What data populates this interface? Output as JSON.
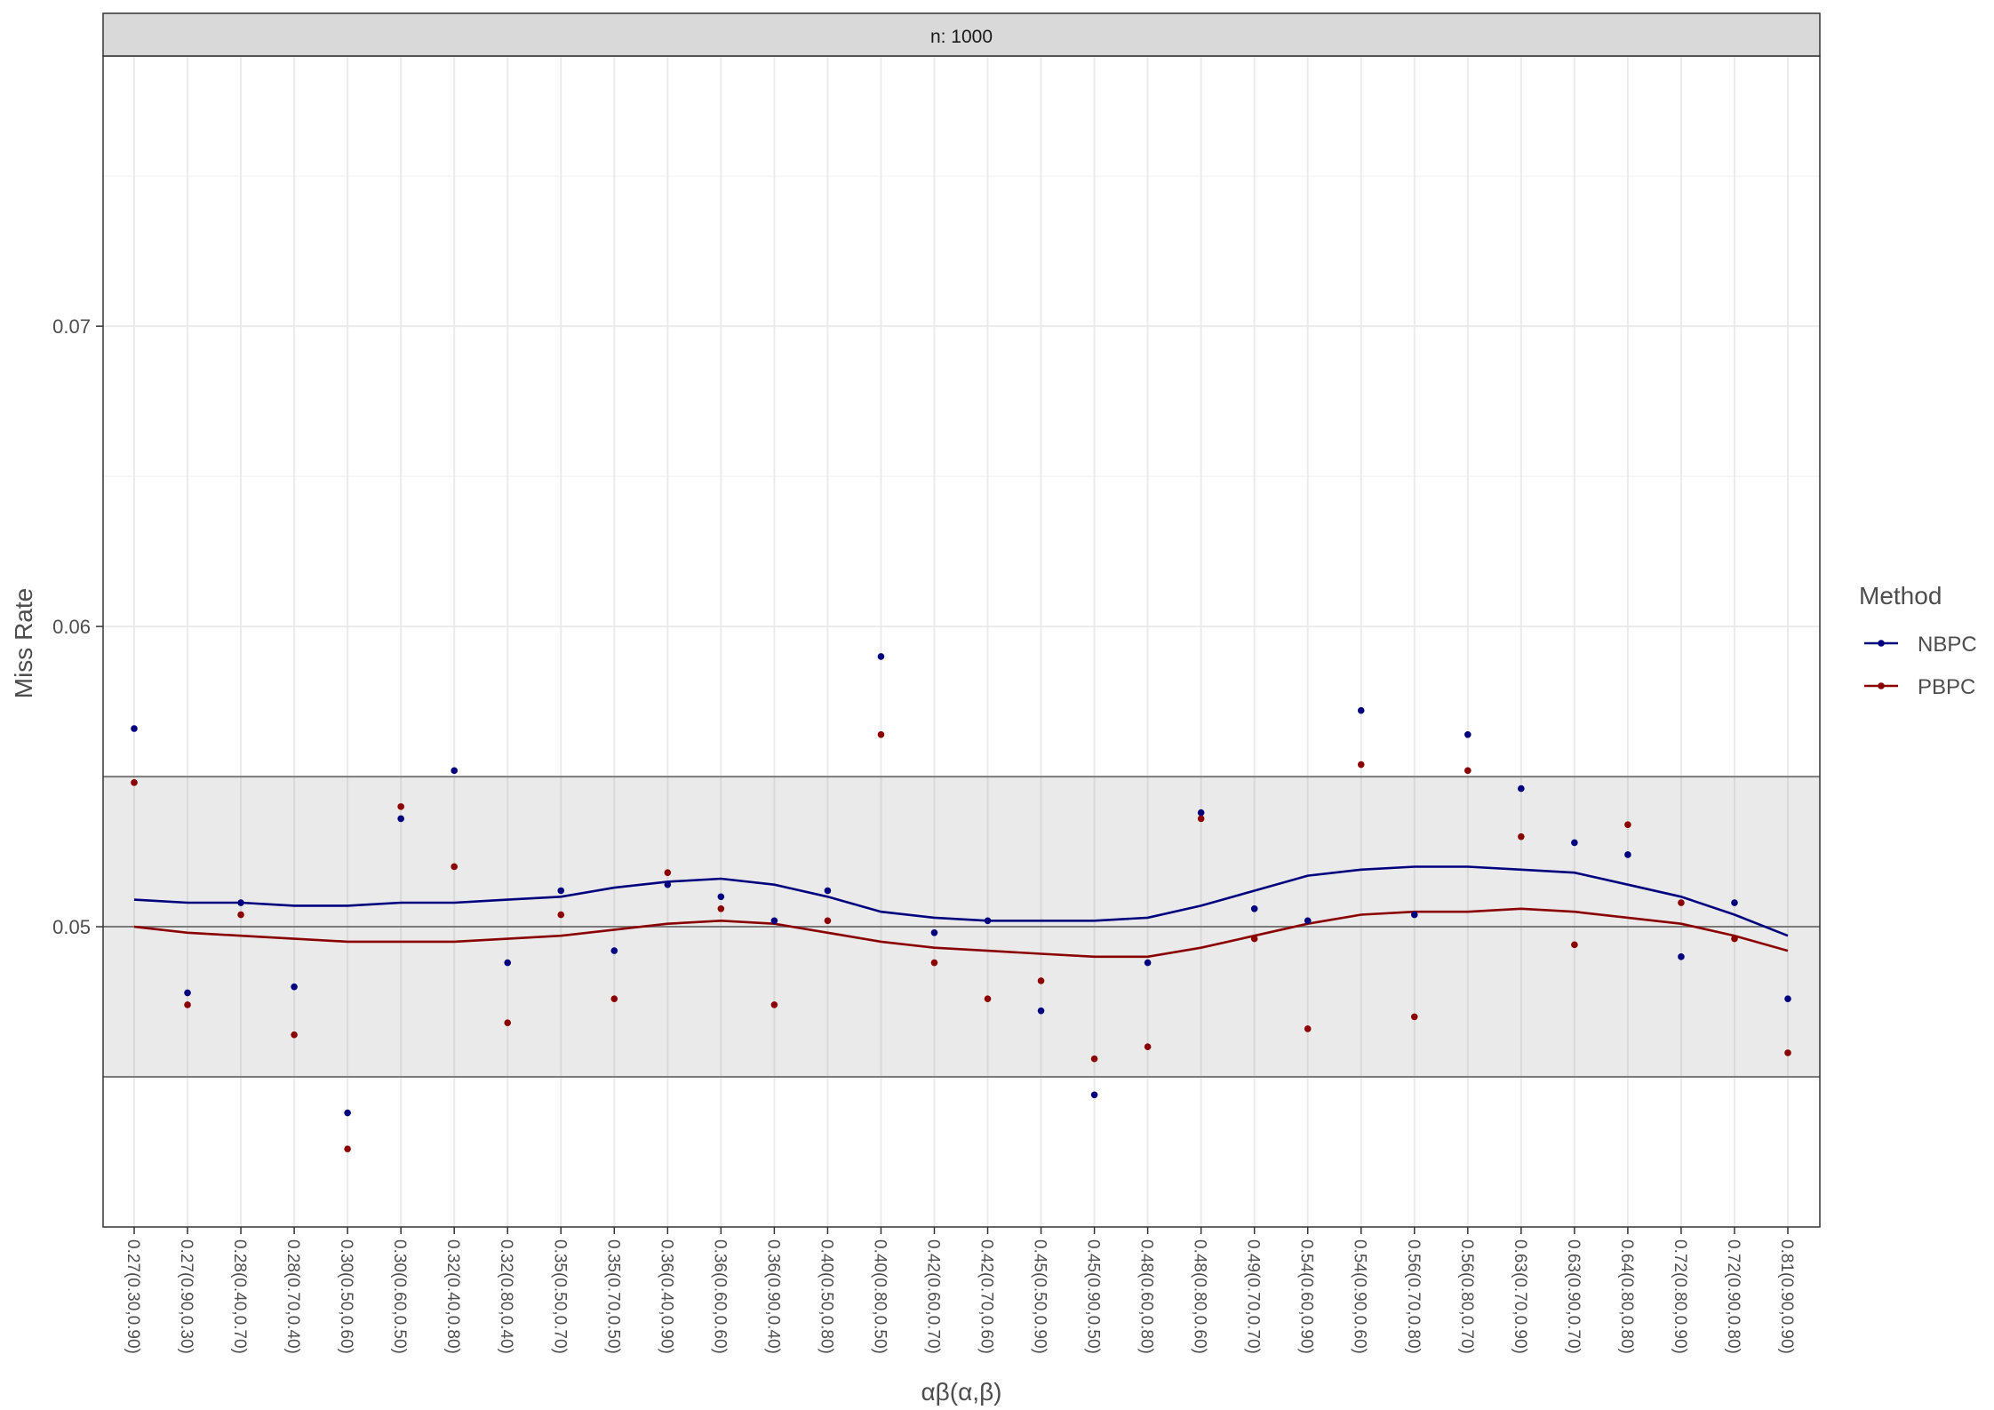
{
  "chart_data": {
    "type": "scatter",
    "facet_label": "n: 1000",
    "xlabel": "αβ(α,β)",
    "ylabel": "Miss Rate",
    "ylim": [
      0.04,
      0.079
    ],
    "y_ticks": [
      0.05,
      0.06,
      0.07
    ],
    "y_tick_labels": [
      "0.05",
      "0.06",
      "0.07"
    ],
    "grid": true,
    "reference_lines": [
      0.045,
      0.05,
      0.055
    ],
    "band": [
      0.045,
      0.055
    ],
    "legend_title": "Method",
    "legend_position": "right",
    "categories": [
      "0.27(0.30,0.90)",
      "0.27(0.90,0.30)",
      "0.28(0.40,0.70)",
      "0.28(0.70,0.40)",
      "0.30(0.50,0.60)",
      "0.30(0.60,0.50)",
      "0.32(0.40,0.80)",
      "0.32(0.80,0.40)",
      "0.35(0.50,0.70)",
      "0.35(0.70,0.50)",
      "0.36(0.40,0.90)",
      "0.36(0.60,0.60)",
      "0.36(0.90,0.40)",
      "0.40(0.50,0.80)",
      "0.40(0.80,0.50)",
      "0.42(0.60,0.70)",
      "0.42(0.70,0.60)",
      "0.45(0.50,0.90)",
      "0.45(0.90,0.50)",
      "0.48(0.60,0.80)",
      "0.48(0.80,0.60)",
      "0.49(0.70,0.70)",
      "0.54(0.60,0.90)",
      "0.54(0.90,0.60)",
      "0.56(0.70,0.80)",
      "0.56(0.80,0.70)",
      "0.63(0.70,0.90)",
      "0.63(0.90,0.70)",
      "0.64(0.80,0.80)",
      "0.72(0.80,0.90)",
      "0.72(0.90,0.80)",
      "0.81(0.90,0.90)"
    ],
    "series": [
      {
        "name": "NBPC",
        "color": "#00007f",
        "values": [
          0.0566,
          0.0478,
          0.0508,
          0.048,
          0.0438,
          0.0536,
          0.0552,
          0.0488,
          0.0512,
          0.0492,
          0.0514,
          0.051,
          0.0502,
          0.0512,
          0.059,
          0.0498,
          0.0502,
          0.0472,
          0.0444,
          0.0488,
          0.0538,
          0.0506,
          0.0502,
          0.0572,
          0.0504,
          0.0564,
          0.0546,
          0.0528,
          0.0524,
          0.049,
          0.0508,
          0.0476
        ],
        "smooth": [
          0.0509,
          0.0508,
          0.0508,
          0.0507,
          0.0507,
          0.0508,
          0.0508,
          0.0509,
          0.051,
          0.0513,
          0.0515,
          0.0516,
          0.0514,
          0.051,
          0.0505,
          0.0503,
          0.0502,
          0.0502,
          0.0502,
          0.0503,
          0.0507,
          0.0512,
          0.0517,
          0.0519,
          0.052,
          0.052,
          0.0519,
          0.0518,
          0.0514,
          0.051,
          0.0504,
          0.0497
        ]
      },
      {
        "name": "PBPC",
        "color": "#8b0000",
        "values": [
          0.0548,
          0.0474,
          0.0504,
          0.0464,
          0.0426,
          0.054,
          0.052,
          0.0468,
          0.0504,
          0.0476,
          0.0518,
          0.0506,
          0.0474,
          0.0502,
          0.0564,
          0.0488,
          0.0476,
          0.0482,
          0.0456,
          0.046,
          0.0536,
          0.0496,
          0.0466,
          0.0554,
          0.047,
          0.0552,
          0.053,
          0.0494,
          0.0534,
          0.0508,
          0.0496,
          0.0458
        ],
        "smooth": [
          0.05,
          0.0498,
          0.0497,
          0.0496,
          0.0495,
          0.0495,
          0.0495,
          0.0496,
          0.0497,
          0.0499,
          0.0501,
          0.0502,
          0.0501,
          0.0498,
          0.0495,
          0.0493,
          0.0492,
          0.0491,
          0.049,
          0.049,
          0.0493,
          0.0497,
          0.0501,
          0.0504,
          0.0505,
          0.0505,
          0.0506,
          0.0505,
          0.0503,
          0.0501,
          0.0497,
          0.0492
        ]
      }
    ]
  }
}
